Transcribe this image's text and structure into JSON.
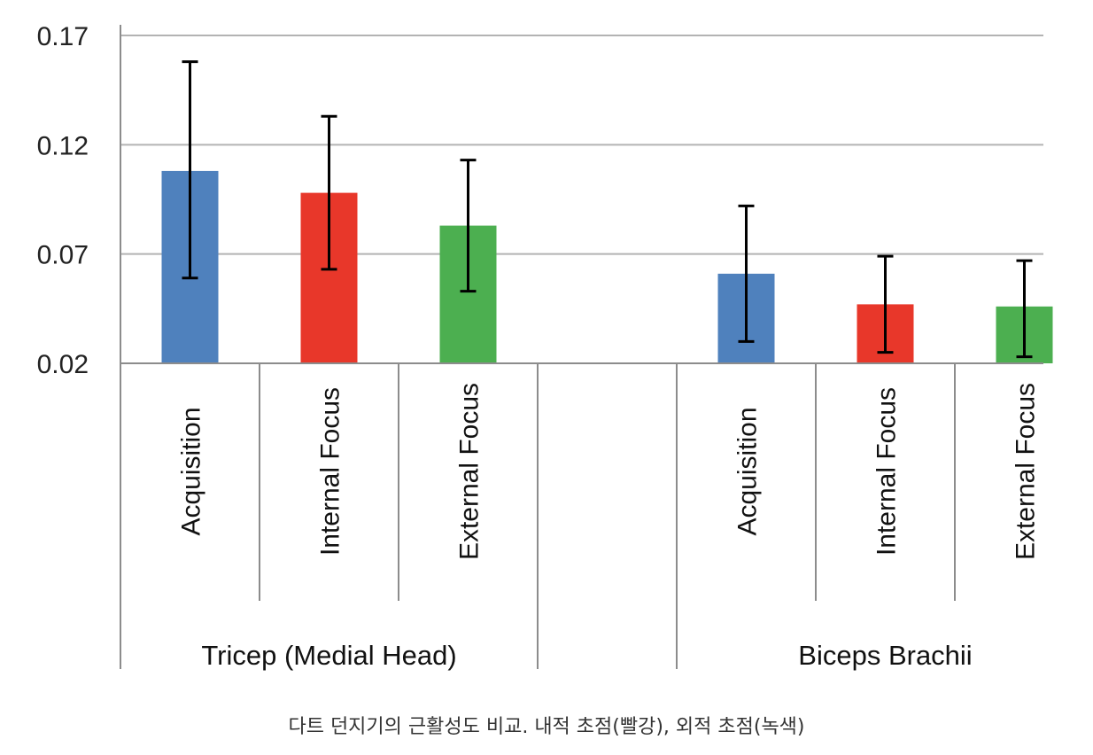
{
  "chart_data": {
    "type": "bar",
    "ylim": [
      0.02,
      0.17
    ],
    "yticks": [
      0.02,
      0.07,
      0.12,
      0.17
    ],
    "ytick_labels": [
      "0.02",
      "0.07",
      "0.12",
      "0.17"
    ],
    "grid": true,
    "groups": [
      {
        "label": "Tricep (Medial Head)",
        "bars": [
          {
            "category": "Acquisition",
            "value": 0.108,
            "err_low": 0.059,
            "err_high": 0.158,
            "color": "#4F81BD"
          },
          {
            "category": "Internal Focus",
            "value": 0.098,
            "err_low": 0.063,
            "err_high": 0.133,
            "color": "#E8372A"
          },
          {
            "category": "External Focus",
            "value": 0.083,
            "err_low": 0.053,
            "err_high": 0.113,
            "color": "#4CAF50"
          }
        ]
      },
      {
        "label": "Biceps Brachii",
        "bars": [
          {
            "category": "Acquisition",
            "value": 0.061,
            "err_low": 0.03,
            "err_high": 0.092,
            "color": "#4F81BD"
          },
          {
            "category": "Internal Focus",
            "value": 0.047,
            "err_low": 0.025,
            "err_high": 0.069,
            "color": "#E8372A"
          },
          {
            "category": "External Focus",
            "value": 0.046,
            "err_low": 0.023,
            "err_high": 0.067,
            "color": "#4CAF50"
          }
        ]
      }
    ]
  },
  "caption": "다트 던지기의 근활성도 비교. 내적 초점(빨강), 외적 초점(녹색)"
}
